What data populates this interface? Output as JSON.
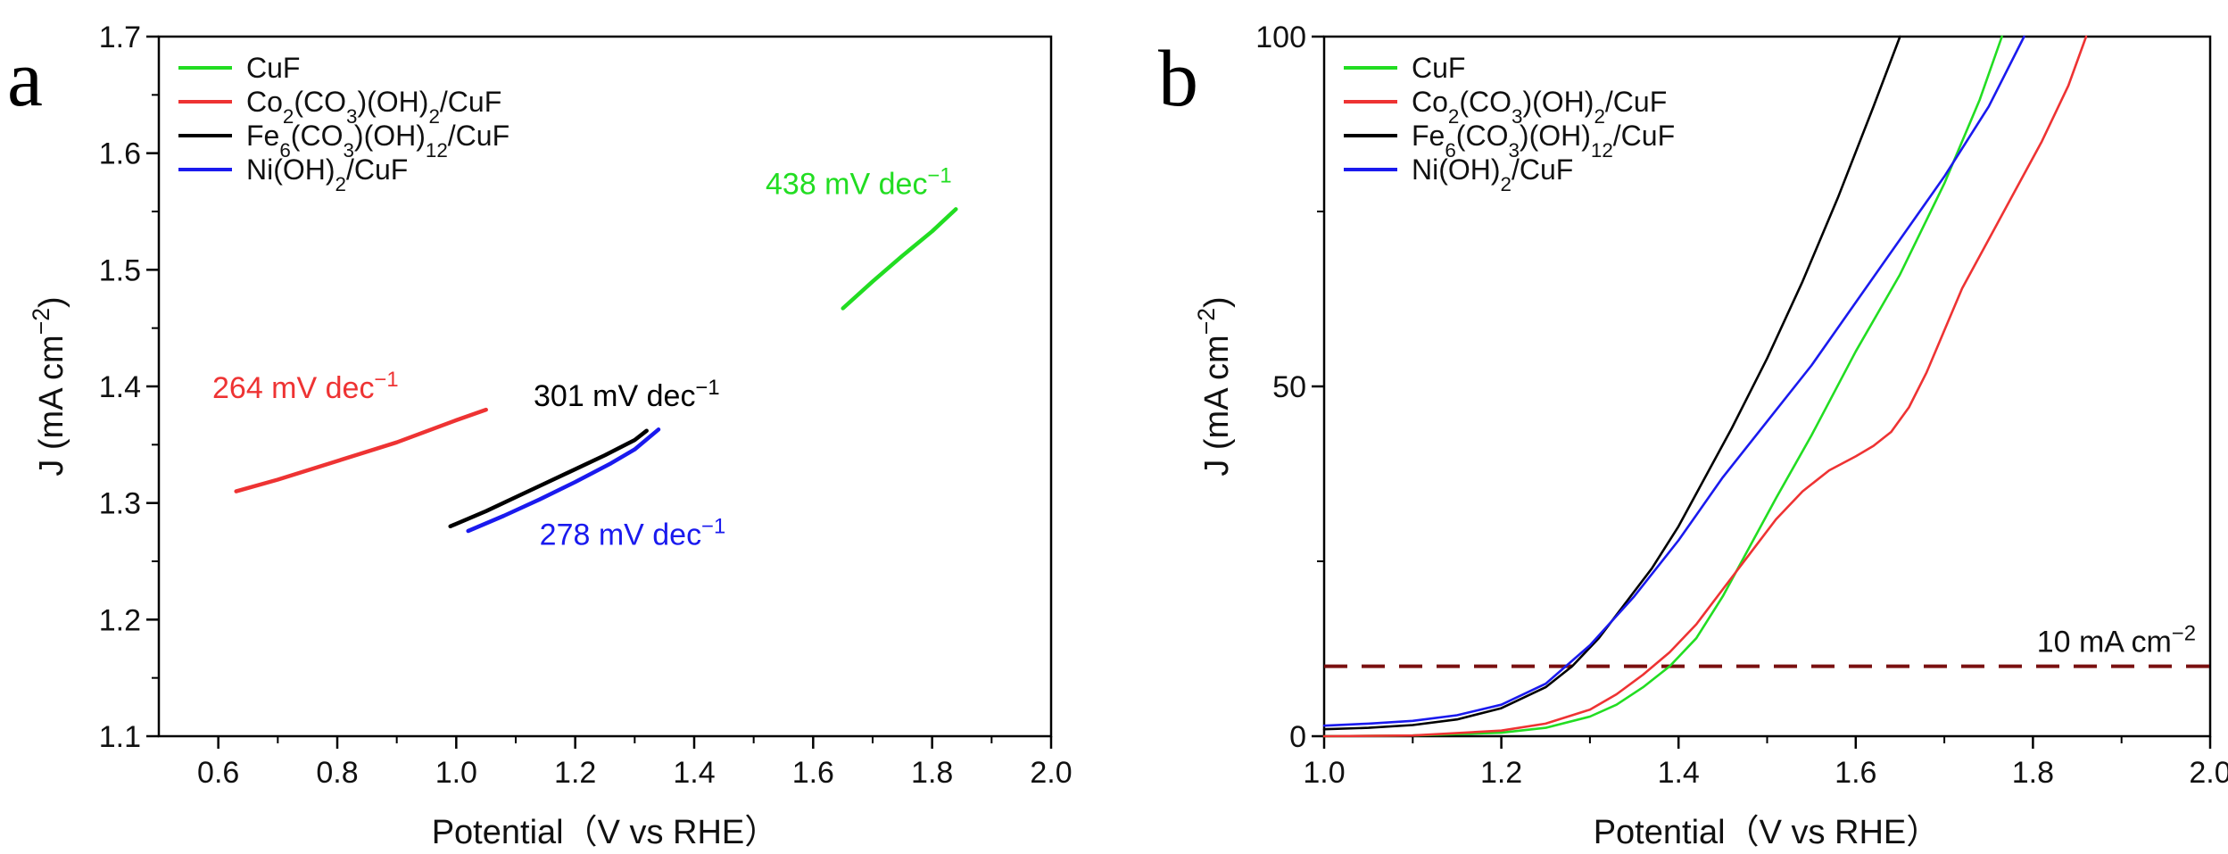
{
  "chart_data": [
    {
      "id": "a",
      "panel_label": "a",
      "type": "line",
      "title": "",
      "xlabel": "Potential（V vs RHE）",
      "ylabel": "J (mA cm−2)",
      "ylabel_parts": [
        "J (mA cm",
        "−2",
        ")"
      ],
      "xlim": [
        0.5,
        2.0
      ],
      "ylim": [
        1.1,
        1.7
      ],
      "xticks": [
        0.6,
        0.8,
        1.0,
        1.2,
        1.4,
        1.6,
        1.8,
        2.0
      ],
      "xtick_labels": [
        "0.6",
        "0.8",
        "1.0",
        "1.2",
        "1.4",
        "1.6",
        "1.8",
        "2.0"
      ],
      "yticks": [
        1.1,
        1.2,
        1.3,
        1.4,
        1.5,
        1.6,
        1.7
      ],
      "ytick_labels": [
        "1.1",
        "1.2",
        "1.3",
        "1.4",
        "1.5",
        "1.6",
        "1.7"
      ],
      "grid": false,
      "legend_position": "top-left",
      "series": [
        {
          "name": "CuF",
          "legend": [
            {
              "t": "CuF"
            }
          ],
          "color": "#22dd22",
          "x": [
            1.65,
            1.7,
            1.75,
            1.8,
            1.84
          ],
          "y": [
            1.467,
            1.49,
            1.512,
            1.533,
            1.552
          ]
        },
        {
          "name": "Co2(CO3)(OH)2/CuF",
          "legend": [
            {
              "t": "Co"
            },
            {
              "t": "2",
              "sub": true
            },
            {
              "t": "(CO"
            },
            {
              "t": "3",
              "sub": true
            },
            {
              "t": ")(OH)"
            },
            {
              "t": "2",
              "sub": true
            },
            {
              "t": "/CuF"
            }
          ],
          "color": "#ee3333",
          "x": [
            0.63,
            0.7,
            0.8,
            0.9,
            1.0,
            1.05
          ],
          "y": [
            1.31,
            1.32,
            1.336,
            1.352,
            1.371,
            1.38
          ]
        },
        {
          "name": "Fe6(CO3)(OH)12/CuF",
          "legend": [
            {
              "t": "Fe"
            },
            {
              "t": "6",
              "sub": true
            },
            {
              "t": "(CO"
            },
            {
              "t": "3",
              "sub": true
            },
            {
              "t": ")(OH)"
            },
            {
              "t": "12",
              "sub": true
            },
            {
              "t": "/CuF"
            }
          ],
          "color": "#000000",
          "x": [
            0.99,
            1.05,
            1.1,
            1.15,
            1.2,
            1.25,
            1.3,
            1.32
          ],
          "y": [
            1.28,
            1.293,
            1.305,
            1.317,
            1.329,
            1.341,
            1.354,
            1.362
          ]
        },
        {
          "name": "Ni(OH)2/CuF",
          "legend": [
            {
              "t": "Ni(OH)"
            },
            {
              "t": "2",
              "sub": true
            },
            {
              "t": "/CuF"
            }
          ],
          "color": "#1a1aee",
          "x": [
            1.02,
            1.08,
            1.14,
            1.2,
            1.26,
            1.3,
            1.34
          ],
          "y": [
            1.276,
            1.289,
            1.303,
            1.318,
            1.334,
            1.346,
            1.363
          ]
        }
      ],
      "annotations": [
        {
          "parts": [
            {
              "t": "438 mV dec"
            },
            {
              "t": "−1",
              "sup": true
            }
          ],
          "x": 1.52,
          "y": 1.565,
          "color": "#22dd22"
        },
        {
          "parts": [
            {
              "t": "264 mV dec"
            },
            {
              "t": "−1",
              "sup": true
            }
          ],
          "x": 0.59,
          "y": 1.39,
          "color": "#ee3333"
        },
        {
          "parts": [
            {
              "t": "301 mV dec"
            },
            {
              "t": "−1",
              "sup": true
            }
          ],
          "x": 1.13,
          "y": 1.383,
          "color": "#000000"
        },
        {
          "parts": [
            {
              "t": "278 mV dec"
            },
            {
              "t": "−1",
              "sup": true
            }
          ],
          "x": 1.14,
          "y": 1.264,
          "color": "#1a1aee"
        }
      ]
    },
    {
      "id": "b",
      "panel_label": "b",
      "type": "line",
      "title": "",
      "xlabel": "Potential（V vs RHE）",
      "ylabel": "J (mA cm−2)",
      "ylabel_parts": [
        "J (mA cm",
        "−2",
        ")"
      ],
      "xlim": [
        1.0,
        2.0
      ],
      "ylim": [
        0,
        100
      ],
      "xticks": [
        1.0,
        1.2,
        1.4,
        1.6,
        1.8,
        2.0
      ],
      "xtick_labels": [
        "1.0",
        "1.2",
        "1.4",
        "1.6",
        "1.8",
        "2.0"
      ],
      "yticks": [
        0,
        50,
        100
      ],
      "ytick_labels": [
        "0",
        "50",
        "100"
      ],
      "grid": false,
      "legend_position": "top-left",
      "series": [
        {
          "name": "CuF",
          "legend": [
            {
              "t": "CuF"
            }
          ],
          "color": "#22dd22",
          "x": [
            1.0,
            1.1,
            1.2,
            1.25,
            1.3,
            1.33,
            1.36,
            1.39,
            1.42,
            1.45,
            1.48,
            1.51,
            1.55,
            1.6,
            1.65,
            1.7,
            1.74,
            1.765
          ],
          "y": [
            0,
            0.1,
            0.5,
            1.2,
            2.8,
            4.5,
            7.0,
            10.0,
            14.0,
            20.0,
            27.0,
            34.0,
            43.0,
            55.0,
            66.0,
            79.0,
            91.0,
            100.0
          ]
        },
        {
          "name": "Co2(CO3)(OH)2/CuF",
          "legend": [
            {
              "t": "Co"
            },
            {
              "t": "2",
              "sub": true
            },
            {
              "t": "(CO"
            },
            {
              "t": "3",
              "sub": true
            },
            {
              "t": ")(OH)"
            },
            {
              "t": "2",
              "sub": true
            },
            {
              "t": "/CuF"
            }
          ],
          "color": "#ee3333",
          "x": [
            1.0,
            1.1,
            1.2,
            1.25,
            1.3,
            1.33,
            1.36,
            1.39,
            1.42,
            1.45,
            1.48,
            1.51,
            1.54,
            1.57,
            1.6,
            1.62,
            1.64,
            1.66,
            1.68,
            1.7,
            1.72,
            1.75,
            1.78,
            1.81,
            1.84,
            1.86
          ],
          "y": [
            0,
            0.1,
            0.8,
            1.8,
            3.8,
            6.0,
            8.8,
            12.0,
            16.0,
            21.0,
            26.0,
            31.0,
            35.0,
            38.0,
            40.0,
            41.5,
            43.5,
            47.0,
            52.0,
            58.0,
            64.0,
            71.0,
            78.0,
            85.0,
            93.0,
            100.0
          ]
        },
        {
          "name": "Fe6(CO3)(OH)12/CuF",
          "legend": [
            {
              "t": "Fe"
            },
            {
              "t": "6",
              "sub": true
            },
            {
              "t": "(CO"
            },
            {
              "t": "3",
              "sub": true
            },
            {
              "t": ")(OH)"
            },
            {
              "t": "12",
              "sub": true
            },
            {
              "t": "/CuF"
            }
          ],
          "color": "#000000",
          "x": [
            1.0,
            1.05,
            1.1,
            1.15,
            1.2,
            1.25,
            1.28,
            1.31,
            1.34,
            1.37,
            1.4,
            1.43,
            1.46,
            1.5,
            1.54,
            1.58,
            1.62,
            1.65
          ],
          "y": [
            1.0,
            1.2,
            1.6,
            2.4,
            4.0,
            7.0,
            10.0,
            14.0,
            19.0,
            24.0,
            30.0,
            37.0,
            44.0,
            54.0,
            65.0,
            77.0,
            90.0,
            100.0
          ]
        },
        {
          "name": "Ni(OH)2/CuF",
          "legend": [
            {
              "t": "Ni(OH)"
            },
            {
              "t": "2",
              "sub": true
            },
            {
              "t": "/CuF"
            }
          ],
          "color": "#1a1aee",
          "x": [
            1.0,
            1.05,
            1.1,
            1.15,
            1.2,
            1.25,
            1.3,
            1.35,
            1.4,
            1.45,
            1.5,
            1.55,
            1.6,
            1.65,
            1.7,
            1.75,
            1.79
          ],
          "y": [
            1.5,
            1.8,
            2.2,
            3.0,
            4.5,
            7.5,
            13.0,
            20.0,
            28.0,
            37.0,
            45.0,
            53.0,
            62.0,
            71.0,
            80.0,
            90.0,
            100.0
          ]
        }
      ],
      "reference_line": {
        "y": 10,
        "style": "dashed",
        "color": "#7a1010",
        "label_parts": [
          {
            "t": "10 mA cm"
          },
          {
            "t": "−2",
            "sup": true
          }
        ]
      }
    }
  ]
}
